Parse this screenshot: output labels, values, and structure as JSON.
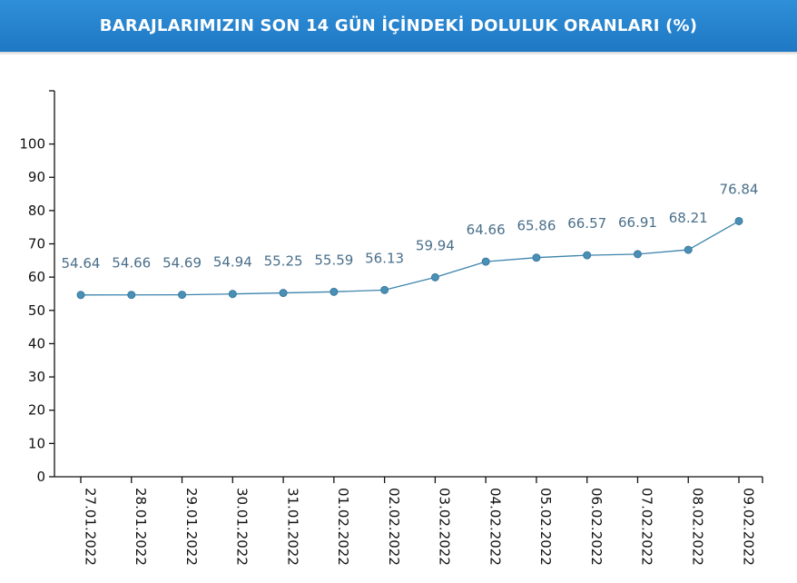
{
  "title": "BARAJLARIMIZIN SON 14 GÜN İÇİNDEKİ DOLULUK ORANLARI (%)",
  "colors": {
    "header": "#2580c9",
    "line": "#3d84ad",
    "marker": "#4a8fb5",
    "data_label": "#4a6f8a",
    "axis": "#111111"
  },
  "chart_data": {
    "type": "line",
    "title": "BARAJLARIMIZIN SON 14 GÜN İÇİNDEKİ DOLULUK ORANLARI (%)",
    "xlabel": "",
    "ylabel": "",
    "categories": [
      "27.01.2022",
      "28.01.2022",
      "29.01.2022",
      "30.01.2022",
      "31.01.2022",
      "01.02.2022",
      "02.02.2022",
      "03.02.2022",
      "04.02.2022",
      "05.02.2022",
      "06.02.2022",
      "07.02.2022",
      "08.02.2022",
      "09.02.2022"
    ],
    "values": [
      54.64,
      54.66,
      54.69,
      54.94,
      55.25,
      55.59,
      56.13,
      59.94,
      64.66,
      65.86,
      66.57,
      66.91,
      68.21,
      76.84
    ],
    "data_labels": [
      "54.64",
      "54.66",
      "54.69",
      "54.94",
      "55.25",
      "55.59",
      "56.13",
      "59.94",
      "64.66",
      "65.86",
      "66.57",
      "66.91",
      "68.21",
      "76.84"
    ],
    "yticks": [
      0,
      10,
      20,
      30,
      40,
      50,
      60,
      70,
      80,
      90,
      100
    ],
    "ylim": [
      0,
      116
    ],
    "grid": false,
    "legend": "none"
  }
}
